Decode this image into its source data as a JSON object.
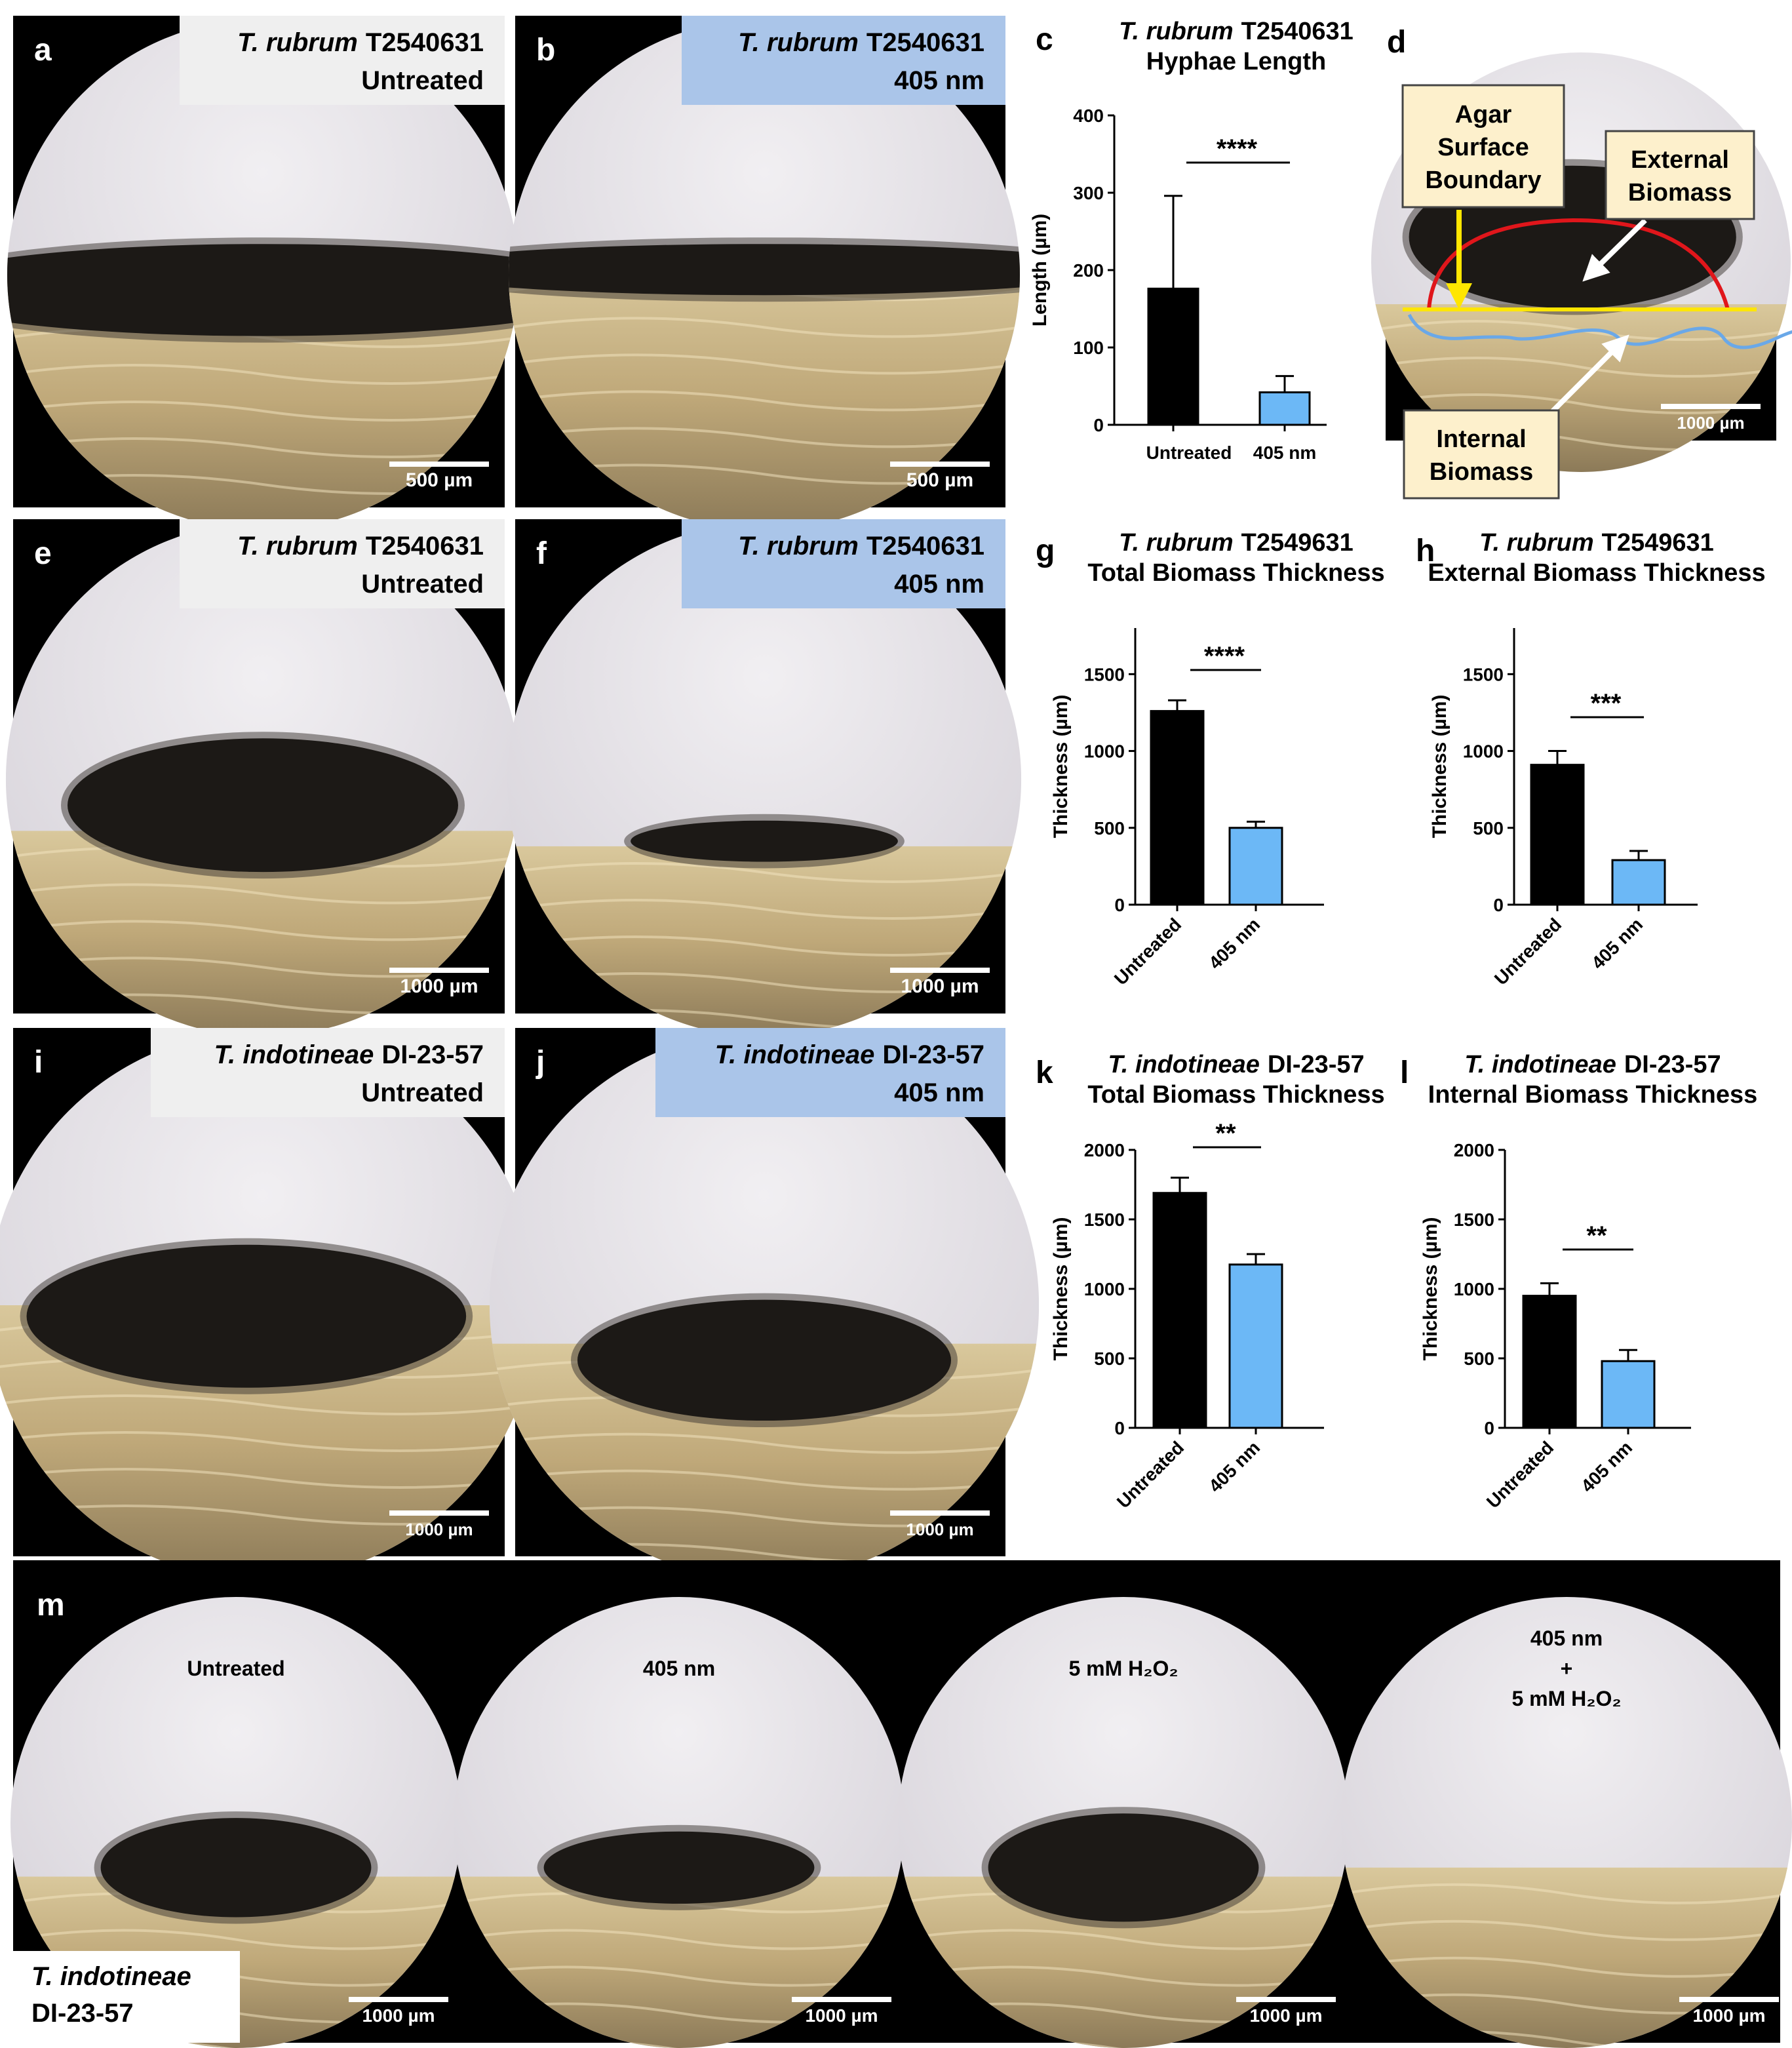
{
  "panels": [
    {
      "letter": "a",
      "species": "T. rubrum",
      "strain": "T2540631",
      "condition": "Untreated",
      "scale_bar": "500 µm"
    },
    {
      "letter": "b",
      "species": "T. rubrum",
      "strain": "T2540631",
      "condition": "405 nm",
      "scale_bar": "500 µm"
    },
    {
      "letter": "e",
      "species": "T. rubrum",
      "strain": "T2540631",
      "condition": "Untreated",
      "scale_bar": "1000 µm"
    },
    {
      "letter": "f",
      "species": "T. rubrum",
      "strain": "T2540631",
      "condition": "405 nm",
      "scale_bar": "1000 µm"
    },
    {
      "letter": "i",
      "species": "T. indotineae",
      "strain": "DI-23-57",
      "condition": "Untreated",
      "scale_bar": "1000 µm"
    },
    {
      "letter": "j",
      "species": "T. indotineae",
      "strain": "DI-23-57",
      "condition": "405 nm",
      "scale_bar": "1000 µm"
    }
  ],
  "diagram": {
    "letter": "d",
    "agar_label": [
      "Agar",
      "Surface",
      "Boundary"
    ],
    "external_label": [
      "External",
      "Biomass"
    ],
    "internal_label": [
      "Internal",
      "Biomass"
    ],
    "scale_bar": "1000 µm"
  },
  "chart_data": [
    {
      "type": "bar",
      "letter": "c",
      "title_italic": "T. rubrum",
      "title": "T2540631",
      "subtitle": "Hyphae Length",
      "y_label": "Length (µm)",
      "categories": [
        "Untreated",
        "405 nm"
      ],
      "values": [
        176,
        42
      ],
      "errors": [
        120,
        21
      ],
      "colors": [
        "#000000",
        "#6cb8f6"
      ],
      "significance": "****",
      "ylim": [
        0,
        400
      ],
      "yticks": [
        0,
        100,
        200,
        300,
        400
      ]
    },
    {
      "type": "bar",
      "letter": "g",
      "title_italic": "T. rubrum",
      "title": "T2549631",
      "subtitle": "Total Biomass Thickness",
      "y_label": "Thickness (µm)",
      "categories": [
        "Untreated",
        "405 nm"
      ],
      "values": [
        1260,
        500
      ],
      "errors": [
        70,
        40
      ],
      "colors": [
        "#000000",
        "#6cb8f6"
      ],
      "significance": "****",
      "ylim": [
        0,
        1800
      ],
      "yticks": [
        0,
        500,
        1000,
        1500
      ]
    },
    {
      "type": "bar",
      "letter": "h",
      "title_italic": "T. rubrum",
      "title": "T2549631",
      "subtitle": "External Biomass Thickness",
      "y_label": "Thickness (µm)",
      "categories": [
        "Untreated",
        "405 nm"
      ],
      "values": [
        910,
        290
      ],
      "errors": [
        90,
        60
      ],
      "colors": [
        "#000000",
        "#6cb8f6"
      ],
      "significance": "***",
      "ylim": [
        0,
        1800
      ],
      "yticks": [
        0,
        500,
        1000,
        1500
      ]
    },
    {
      "type": "bar",
      "letter": "k",
      "title_italic": "T. indotineae",
      "title": "DI-23-57",
      "subtitle": "Total Biomass Thickness",
      "y_label": "Thickness (µm)",
      "categories": [
        "Untreated",
        "405 nm"
      ],
      "values": [
        1690,
        1175
      ],
      "errors": [
        110,
        75
      ],
      "colors": [
        "#000000",
        "#6cb8f6"
      ],
      "significance": "**",
      "ylim": [
        0,
        2000
      ],
      "yticks": [
        0,
        500,
        1000,
        1500,
        2000
      ]
    },
    {
      "type": "bar",
      "letter": "l",
      "title_italic": "T. indotineae",
      "title": "DI-23-57",
      "subtitle": "Internal Biomass Thickness",
      "y_label": "Thickness (µm)",
      "categories": [
        "Untreated",
        "405 nm"
      ],
      "values": [
        950,
        480
      ],
      "errors": [
        90,
        80
      ],
      "colors": [
        "#000000",
        "#6cb8f6"
      ],
      "significance": "**",
      "ylim": [
        0,
        2000
      ],
      "yticks": [
        0,
        500,
        1000,
        1500,
        2000
      ]
    }
  ],
  "comparison": {
    "letter": "m",
    "conditions": [
      [
        "Untreated"
      ],
      [
        "405 nm"
      ],
      [
        "5 mM H₂O₂"
      ],
      [
        "405 nm",
        "+",
        "5 mM H₂O₂"
      ]
    ],
    "scale_bars": [
      "1000 µm",
      "1000 µm",
      "1000 µm",
      "1000 µm"
    ],
    "species": "T. indotineae",
    "strain": "DI-23-57"
  }
}
